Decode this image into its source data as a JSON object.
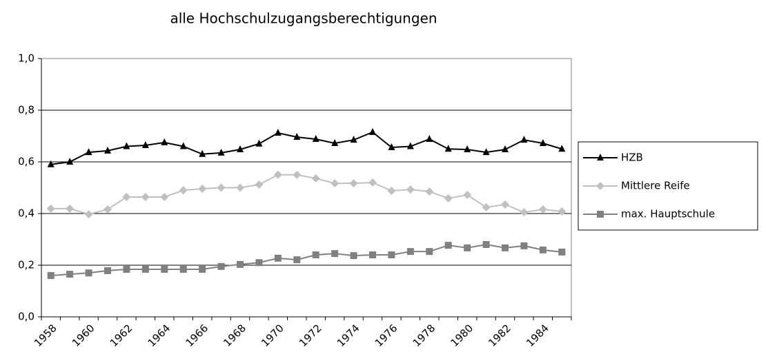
{
  "chart_data": {
    "type": "line",
    "title": "alle Hochschulzugangsberechtigungen",
    "categories": [
      "1958",
      null,
      "1960",
      null,
      "1962",
      null,
      "1964",
      null,
      "1966",
      null,
      "1968",
      null,
      "1970",
      null,
      "1972",
      null,
      "1974",
      null,
      "1976",
      null,
      "1978",
      null,
      "1980",
      null,
      "1982",
      null,
      "1984",
      null
    ],
    "series": [
      {
        "name": "HZB",
        "color": "#000000",
        "marker": "triangle",
        "values": [
          0.59,
          0.6,
          0.637,
          0.643,
          0.66,
          0.664,
          0.675,
          0.66,
          0.63,
          0.635,
          0.648,
          0.67,
          0.712,
          0.696,
          0.688,
          0.672,
          0.685,
          0.715,
          0.656,
          0.66,
          0.688,
          0.65,
          0.648,
          0.637,
          0.648,
          0.685,
          0.672,
          0.65
        ]
      },
      {
        "name": "Mittlere Reife",
        "color": "#c0c0c0",
        "marker": "diamond",
        "values": [
          0.419,
          0.419,
          0.397,
          0.416,
          0.464,
          0.464,
          0.464,
          0.49,
          0.496,
          0.5,
          0.5,
          0.512,
          0.55,
          0.55,
          0.536,
          0.517,
          0.517,
          0.52,
          0.488,
          0.493,
          0.485,
          0.459,
          0.472,
          0.424,
          0.435,
          0.405,
          0.416,
          0.408
        ]
      },
      {
        "name": "max. Hauptschule",
        "color": "#808080",
        "marker": "square",
        "values": [
          0.16,
          0.165,
          0.17,
          0.179,
          0.184,
          0.184,
          0.184,
          0.184,
          0.184,
          0.195,
          0.203,
          0.21,
          0.227,
          0.221,
          0.24,
          0.245,
          0.237,
          0.24,
          0.24,
          0.253,
          0.253,
          0.277,
          0.267,
          0.28,
          0.267,
          0.275,
          0.259,
          0.251
        ]
      }
    ],
    "ylim": [
      0,
      1
    ],
    "yticks": [
      {
        "value": 0,
        "label": "0,0"
      },
      {
        "value": 0.2,
        "label": "0,2"
      },
      {
        "value": 0.4,
        "label": "0,4"
      },
      {
        "value": 0.6,
        "label": "0,6"
      },
      {
        "value": 0.8,
        "label": "0,8"
      },
      {
        "value": 1,
        "label": "1,0"
      }
    ],
    "grid": true,
    "legend": "right"
  }
}
